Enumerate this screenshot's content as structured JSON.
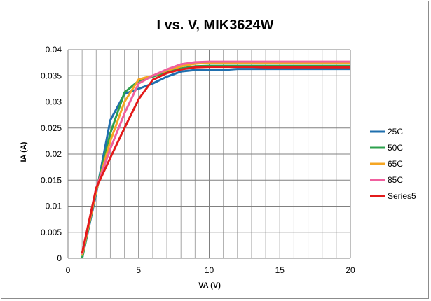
{
  "chart_data": {
    "type": "line",
    "title": "I vs. V, MIK3624W",
    "xlabel": "VA (V)",
    "ylabel": "IA (A)",
    "xlim": [
      0,
      20
    ],
    "ylim": [
      0,
      0.04
    ],
    "x_ticks": [
      0,
      5,
      10,
      15,
      20
    ],
    "y_ticks": [
      0,
      0.005,
      0.01,
      0.015,
      0.02,
      0.025,
      0.03,
      0.035,
      0.04
    ],
    "x_tick_labels": [
      "0",
      "5",
      "10",
      "15",
      "20"
    ],
    "y_tick_labels": [
      "0",
      "0.005",
      "0.01",
      "0.015",
      "0.02",
      "0.025",
      "0.03",
      "0.035",
      "0.04"
    ],
    "grid": true,
    "legend_position": "right",
    "x": [
      1,
      2,
      3,
      4,
      5,
      6,
      7,
      8,
      9,
      10,
      11,
      12,
      13,
      14,
      15,
      16,
      17,
      18,
      19,
      20
    ],
    "series": [
      {
        "name": "25C",
        "color": "#1f6fae",
        "values": [
          0.0,
          0.0125,
          0.0265,
          0.0315,
          0.0325,
          0.0335,
          0.0348,
          0.0358,
          0.0361,
          0.0361,
          0.0361,
          0.0363,
          0.0363,
          0.0363,
          0.0363,
          0.0363,
          0.0363,
          0.0363,
          0.0363,
          0.0363
        ]
      },
      {
        "name": "50C",
        "color": "#2ca04c",
        "values": [
          0.0,
          0.013,
          0.024,
          0.0318,
          0.034,
          0.0348,
          0.0357,
          0.0364,
          0.0368,
          0.0369,
          0.0369,
          0.0369,
          0.0369,
          0.0369,
          0.0369,
          0.0369,
          0.0369,
          0.0369,
          0.0369,
          0.0369
        ]
      },
      {
        "name": "65C",
        "color": "#f5a623",
        "values": [
          0.0005,
          0.013,
          0.0225,
          0.03,
          0.0343,
          0.035,
          0.036,
          0.0368,
          0.0373,
          0.0375,
          0.0375,
          0.0375,
          0.0375,
          0.0375,
          0.0375,
          0.0375,
          0.0375,
          0.0375,
          0.0375,
          0.0375
        ]
      },
      {
        "name": "85C",
        "color": "#f0609e",
        "values": [
          0.0008,
          0.0135,
          0.021,
          0.0278,
          0.0335,
          0.035,
          0.0362,
          0.0372,
          0.0376,
          0.0377,
          0.0377,
          0.0377,
          0.0377,
          0.0377,
          0.0377,
          0.0377,
          0.0377,
          0.0377,
          0.0377,
          0.0377
        ]
      },
      {
        "name": "Series5",
        "color": "#e31b1b",
        "values": [
          0.001,
          0.0135,
          0.0193,
          0.025,
          0.0305,
          0.0342,
          0.0355,
          0.0362,
          0.0366,
          0.0367,
          0.0367,
          0.0367,
          0.0367,
          0.0366,
          0.0366,
          0.0366,
          0.0366,
          0.0366,
          0.0366,
          0.0366
        ]
      }
    ]
  }
}
